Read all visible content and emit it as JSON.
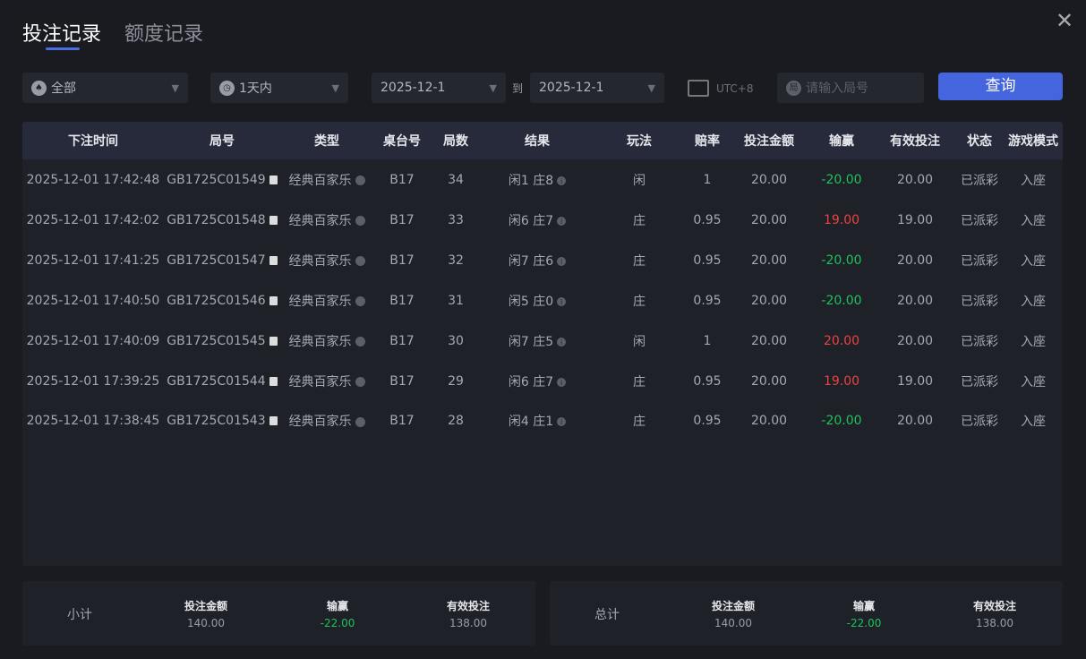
{
  "tabs": [
    {
      "label": "投注记录",
      "active": true
    },
    {
      "label": "额度记录",
      "active": false
    }
  ],
  "filters": {
    "game_type": "全部",
    "period": "1天内",
    "date_from": "2025-12-1",
    "date_to": "2025-12-1",
    "to_label": "到",
    "timezone": "UTC+8",
    "round_placeholder": "请输入局号",
    "query_label": "查询"
  },
  "colors": {
    "accent": "#4465dd",
    "win": "#e94343",
    "loss": "#1fc25a"
  },
  "columns": [
    "下注时间",
    "局号",
    "类型",
    "桌台号",
    "局数",
    "结果",
    "玩法",
    "赔率",
    "投注金额",
    "输赢",
    "有效投注",
    "状态",
    "游戏模式"
  ],
  "rows": [
    {
      "time": "2025-12-01 17:42:48",
      "id": "GB1725C01549",
      "type": "经典百家乐",
      "table": "B17",
      "round": "34",
      "result": "闲1 庄8",
      "bet": "闲",
      "odds": "1",
      "amount": "20.00",
      "winloss": "-20.00",
      "valid": "20.00",
      "status": "已派彩",
      "mode": "入座"
    },
    {
      "time": "2025-12-01 17:42:02",
      "id": "GB1725C01548",
      "type": "经典百家乐",
      "table": "B17",
      "round": "33",
      "result": "闲6 庄7",
      "bet": "庄",
      "odds": "0.95",
      "amount": "20.00",
      "winloss": "19.00",
      "valid": "19.00",
      "status": "已派彩",
      "mode": "入座"
    },
    {
      "time": "2025-12-01 17:41:25",
      "id": "GB1725C01547",
      "type": "经典百家乐",
      "table": "B17",
      "round": "32",
      "result": "闲7 庄6",
      "bet": "庄",
      "odds": "0.95",
      "amount": "20.00",
      "winloss": "-20.00",
      "valid": "20.00",
      "status": "已派彩",
      "mode": "入座"
    },
    {
      "time": "2025-12-01 17:40:50",
      "id": "GB1725C01546",
      "type": "经典百家乐",
      "table": "B17",
      "round": "31",
      "result": "闲5 庄0",
      "bet": "庄",
      "odds": "0.95",
      "amount": "20.00",
      "winloss": "-20.00",
      "valid": "20.00",
      "status": "已派彩",
      "mode": "入座"
    },
    {
      "time": "2025-12-01 17:40:09",
      "id": "GB1725C01545",
      "type": "经典百家乐",
      "table": "B17",
      "round": "30",
      "result": "闲7 庄5",
      "bet": "闲",
      "odds": "1",
      "amount": "20.00",
      "winloss": "20.00",
      "valid": "20.00",
      "status": "已派彩",
      "mode": "入座"
    },
    {
      "time": "2025-12-01 17:39:25",
      "id": "GB1725C01544",
      "type": "经典百家乐",
      "table": "B17",
      "round": "29",
      "result": "闲6 庄7",
      "bet": "庄",
      "odds": "0.95",
      "amount": "20.00",
      "winloss": "19.00",
      "valid": "19.00",
      "status": "已派彩",
      "mode": "入座"
    },
    {
      "time": "2025-12-01 17:38:45",
      "id": "GB1725C01543",
      "type": "经典百家乐",
      "table": "B17",
      "round": "28",
      "result": "闲4 庄1",
      "bet": "庄",
      "odds": "0.95",
      "amount": "20.00",
      "winloss": "-20.00",
      "valid": "20.00",
      "status": "已派彩",
      "mode": "入座"
    }
  ],
  "subtotal": {
    "label": "小计",
    "amount_label": "投注金额",
    "amount": "140.00",
    "winloss_label": "输赢",
    "winloss": "-22.00",
    "valid_label": "有效投注",
    "valid": "138.00"
  },
  "total": {
    "label": "总计",
    "amount_label": "投注金额",
    "amount": "140.00",
    "winloss_label": "输赢",
    "winloss": "-22.00",
    "valid_label": "有效投注",
    "valid": "138.00"
  }
}
